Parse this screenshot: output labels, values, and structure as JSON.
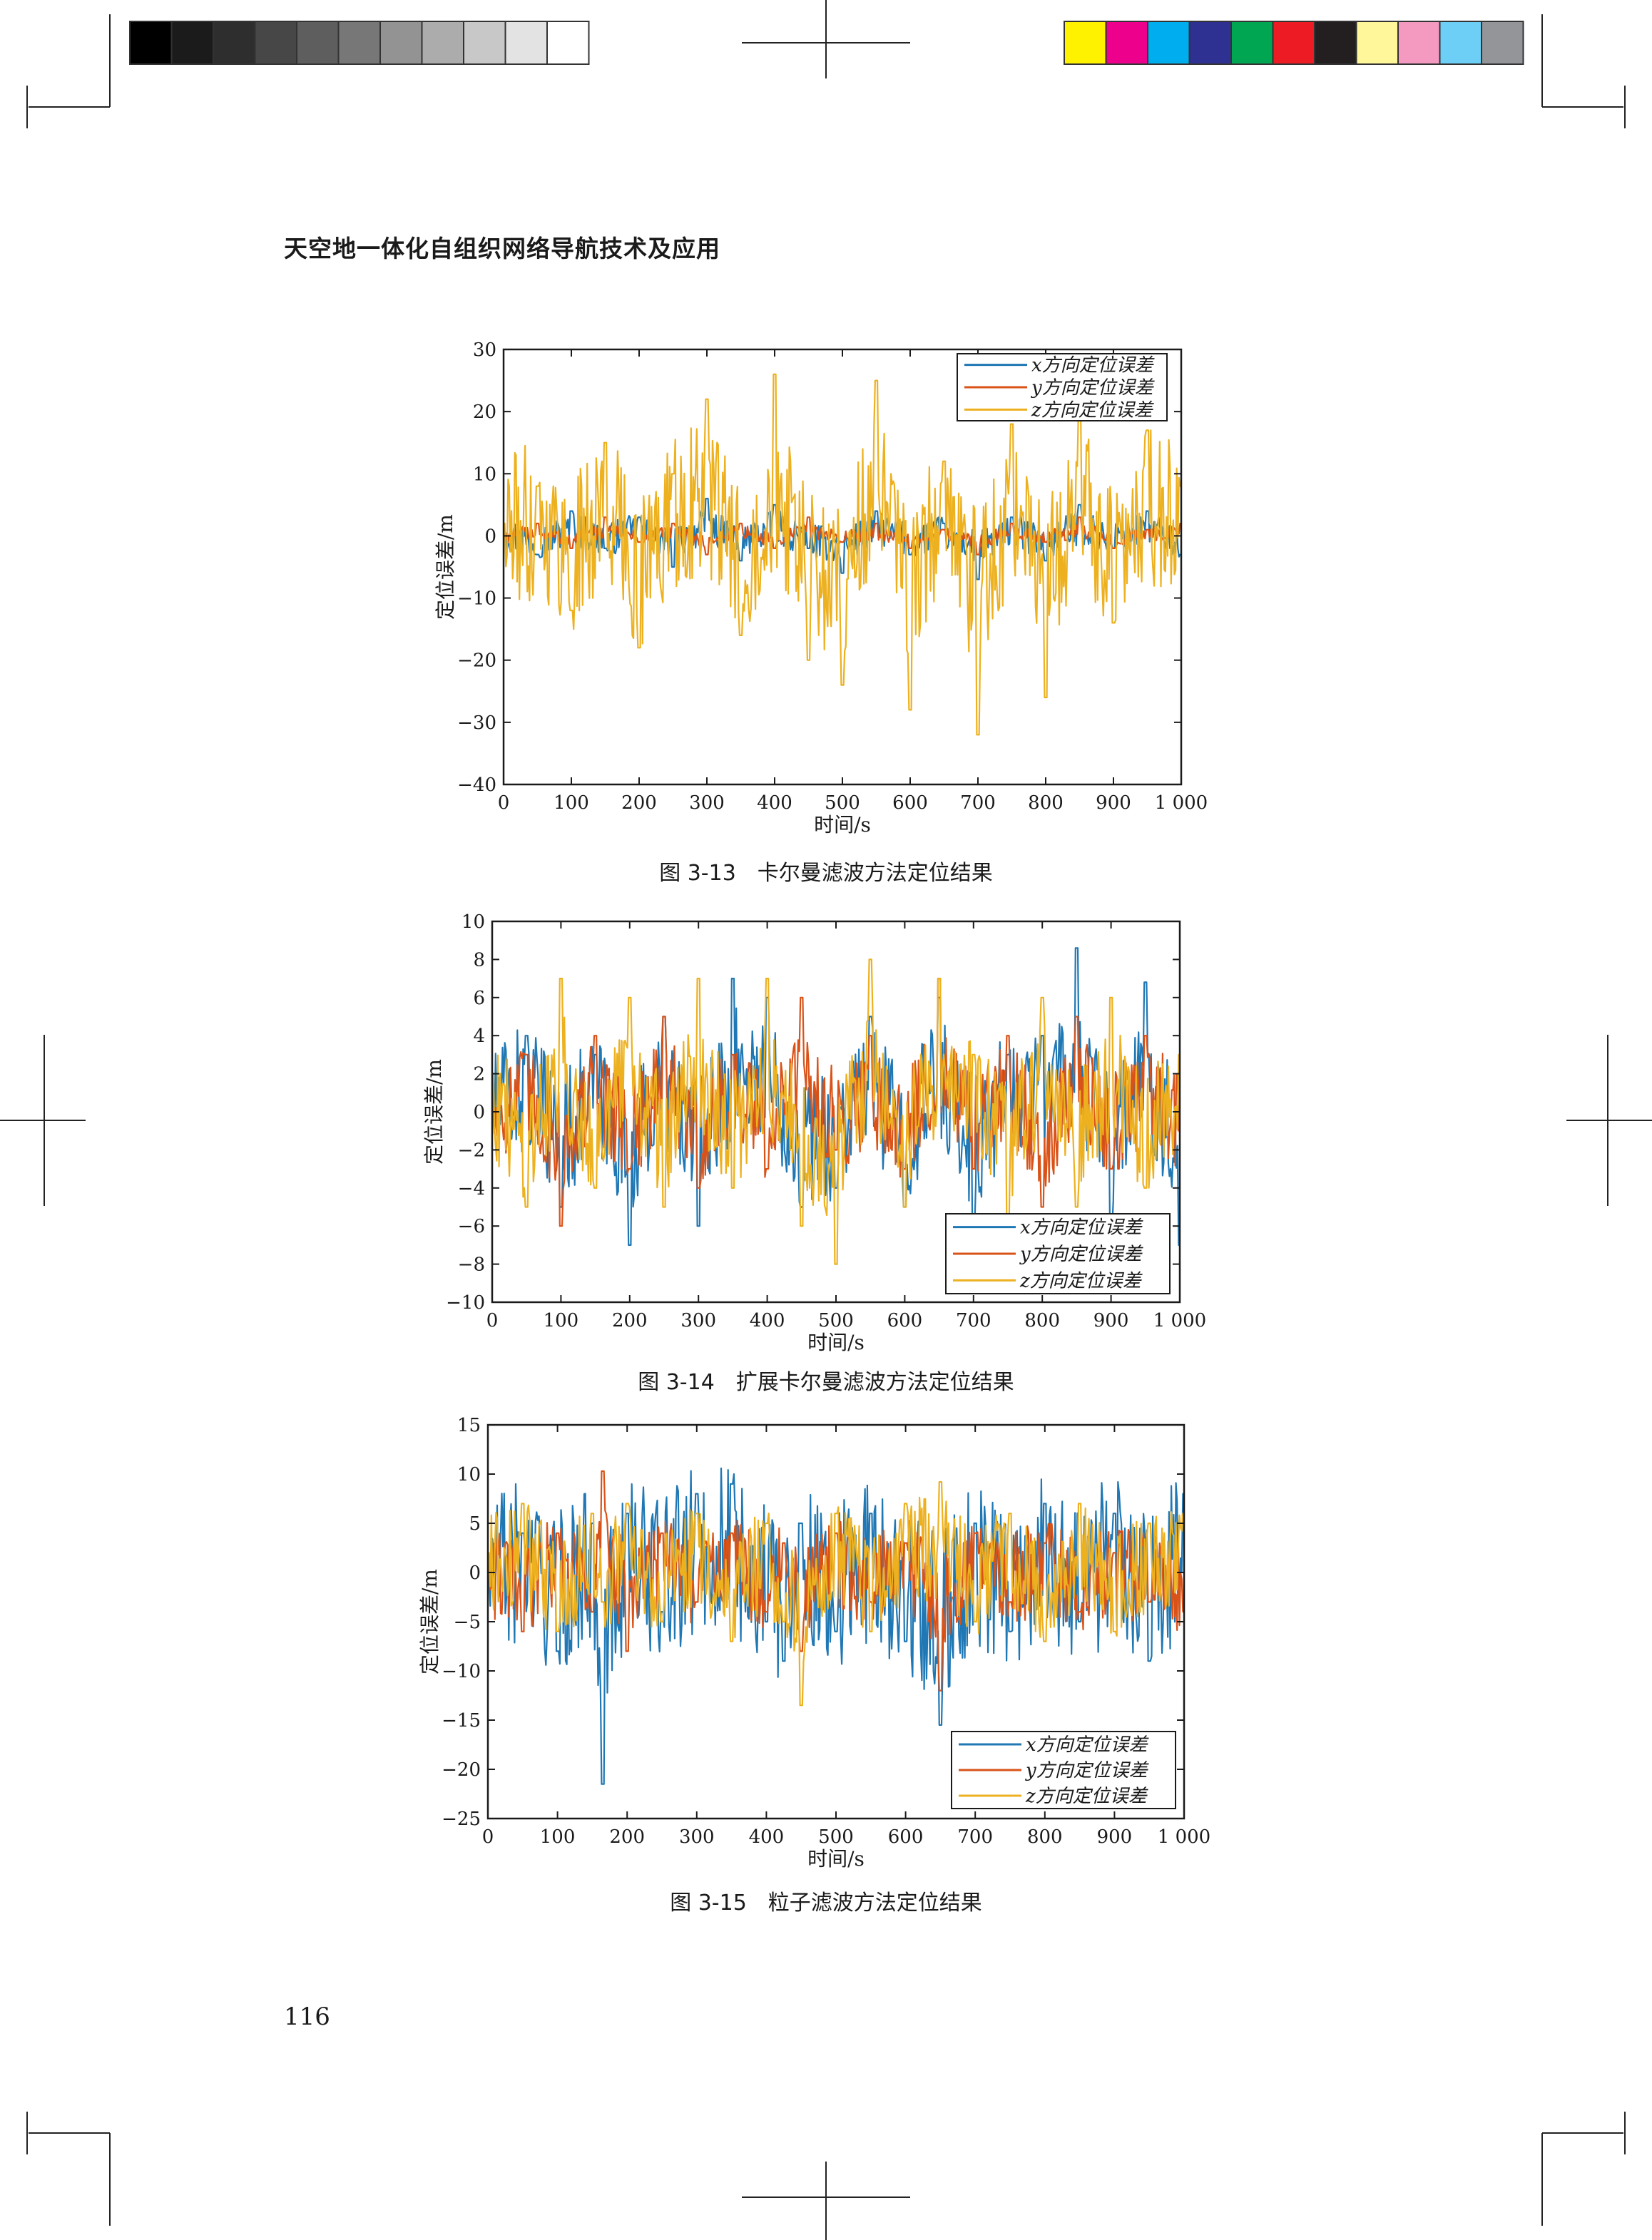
{
  "running_head": "天空地一体化自组织网络导航技术及应用",
  "page_number": "116",
  "print_marks": {
    "grayscale_bar": [
      "#000000",
      "#1b1b1b",
      "#2e2e2e",
      "#474747",
      "#5e5e5e",
      "#777777",
      "#939393",
      "#acacac",
      "#c8c8c8",
      "#e3e3e3",
      "#ffffff"
    ],
    "color_bar": [
      "#fff200",
      "#ec008c",
      "#00aeef",
      "#2e3192",
      "#00a651",
      "#ed1c24",
      "#231f20",
      "#fff799",
      "#f49ac1",
      "#6dcff6",
      "#939598"
    ]
  },
  "series_colors": [
    "#1f77b4",
    "#d95319",
    "#edb120"
  ],
  "chart_data": [
    {
      "type": "line",
      "caption": "图 3-13　卡尔曼滤波方法定位结果",
      "xlabel": "时间/s",
      "ylabel": "定位误差/m",
      "xlim": [
        0,
        1000
      ],
      "ylim": [
        -40,
        30
      ],
      "xticks": [
        0,
        100,
        200,
        300,
        400,
        500,
        600,
        700,
        800,
        900,
        1000
      ],
      "xtick_labels": [
        "0",
        "100",
        "200",
        "300",
        "400",
        "500",
        "600",
        "700",
        "800",
        "900",
        "1 000"
      ],
      "yticks": [
        30,
        20,
        10,
        0,
        -10,
        -20,
        -30,
        -40
      ],
      "ytick_labels": [
        "30",
        "20",
        "10",
        "0",
        "−10",
        "−20",
        "−30",
        "−40"
      ],
      "legend_position": "top-right",
      "grid": false,
      "series": [
        {
          "name": "x方向定位误差",
          "x": [
            0,
            50,
            100,
            150,
            200,
            250,
            300,
            350,
            400,
            450,
            500,
            550,
            600,
            650,
            700,
            750,
            800,
            850,
            900,
            950,
            1000
          ],
          "values": [
            1,
            -3,
            4,
            -2,
            3,
            -5,
            6,
            -4,
            5,
            -2,
            -6,
            4,
            -3,
            2,
            -7,
            3,
            -4,
            5,
            -2,
            4,
            -3
          ]
        },
        {
          "name": "y方向定位误差",
          "x": [
            0,
            50,
            100,
            150,
            200,
            250,
            300,
            350,
            400,
            450,
            500,
            550,
            600,
            650,
            700,
            750,
            800,
            850,
            900,
            950,
            1000
          ],
          "values": [
            0,
            2,
            -2,
            3,
            -1,
            2,
            -3,
            2,
            -2,
            3,
            -1,
            2,
            -2,
            1,
            -3,
            2,
            -1,
            3,
            -2,
            1,
            2
          ]
        },
        {
          "name": "z方向定位误差",
          "x": [
            0,
            50,
            100,
            150,
            200,
            250,
            300,
            350,
            400,
            450,
            500,
            550,
            600,
            650,
            700,
            750,
            800,
            850,
            900,
            950,
            1000
          ],
          "values": [
            2,
            8,
            -12,
            15,
            -18,
            10,
            22,
            -16,
            26,
            -20,
            -24,
            25,
            -28,
            12,
            -32,
            18,
            -26,
            20,
            -14,
            17,
            8
          ]
        }
      ]
    },
    {
      "type": "line",
      "caption": "图 3-14　扩展卡尔曼滤波方法定位结果",
      "xlabel": "时间/s",
      "ylabel": "定位误差/m",
      "xlim": [
        0,
        1000
      ],
      "ylim": [
        -10,
        10
      ],
      "xticks": [
        0,
        100,
        200,
        300,
        400,
        500,
        600,
        700,
        800,
        900,
        1000
      ],
      "xtick_labels": [
        "0",
        "100",
        "200",
        "300",
        "400",
        "500",
        "600",
        "700",
        "800",
        "900",
        "1 000"
      ],
      "yticks": [
        10,
        8,
        6,
        4,
        2,
        0,
        -2,
        -4,
        -6,
        -8,
        -10
      ],
      "ytick_labels": [
        "10",
        "8",
        "6",
        "4",
        "2",
        "0",
        "−2",
        "−4",
        "−6",
        "−8",
        "−10"
      ],
      "legend_position": "bottom-right",
      "grid": false,
      "series": [
        {
          "name": "x方向定位误差",
          "x": [
            0,
            50,
            100,
            150,
            200,
            250,
            300,
            350,
            400,
            450,
            500,
            550,
            600,
            650,
            700,
            750,
            800,
            850,
            900,
            950,
            1000
          ],
          "values": [
            1,
            4,
            -5,
            3,
            -7,
            5,
            -6,
            7,
            6,
            -5,
            -4,
            5,
            -5,
            6,
            -6,
            3,
            4,
            8.6,
            -6,
            6.8,
            -7
          ]
        },
        {
          "name": "y方向定位误差",
          "x": [
            0,
            50,
            100,
            150,
            200,
            250,
            300,
            350,
            400,
            450,
            500,
            550,
            600,
            650,
            700,
            750,
            800,
            850,
            900,
            950,
            1000
          ],
          "values": [
            0,
            3,
            -6,
            4,
            -3,
            5,
            -4,
            3,
            -3,
            6,
            -2,
            4,
            -3,
            7,
            -3,
            4,
            -5,
            5,
            -3,
            4,
            -1
          ]
        },
        {
          "name": "z方向定位误差",
          "x": [
            0,
            50,
            100,
            150,
            200,
            250,
            300,
            350,
            400,
            450,
            500,
            550,
            600,
            650,
            700,
            750,
            800,
            850,
            900,
            950,
            1000
          ],
          "values": [
            2,
            -5,
            7,
            -4,
            6,
            -5,
            7,
            -4,
            7,
            -6,
            -8,
            8,
            -5,
            7,
            3,
            -6,
            6,
            -5,
            6,
            -4,
            3
          ]
        }
      ]
    },
    {
      "type": "line",
      "caption": "图 3-15　粒子滤波方法定位结果",
      "xlabel": "时间/s",
      "ylabel": "定位误差/m",
      "xlim": [
        0,
        1000
      ],
      "ylim": [
        -25,
        15
      ],
      "xticks": [
        0,
        100,
        200,
        300,
        400,
        500,
        600,
        700,
        800,
        900,
        1000
      ],
      "xtick_labels": [
        "0",
        "100",
        "200",
        "300",
        "400",
        "500",
        "600",
        "700",
        "800",
        "900",
        "1 000"
      ],
      "yticks": [
        15,
        10,
        5,
        0,
        -5,
        -10,
        -15,
        -20,
        -25
      ],
      "ytick_labels": [
        "15",
        "10",
        "5",
        "0",
        "−5",
        "−10",
        "−15",
        "−20",
        "−25"
      ],
      "legend_position": "bottom-right",
      "grid": false,
      "series": [
        {
          "name": "x方向定位误差",
          "x": [
            0,
            50,
            100,
            150,
            165,
            200,
            250,
            300,
            350,
            400,
            425,
            450,
            500,
            550,
            600,
            650,
            700,
            750,
            800,
            850,
            900,
            950,
            1000
          ],
          "values": [
            0,
            4,
            -8,
            5,
            -21.5,
            6,
            -4,
            8,
            9,
            -5,
            -9,
            5,
            -6,
            6,
            -7,
            -15.5,
            5,
            -6,
            7,
            -5,
            6,
            -9,
            8
          ]
        },
        {
          "name": "y方向定位误差",
          "x": [
            0,
            50,
            100,
            150,
            165,
            200,
            250,
            300,
            350,
            400,
            425,
            450,
            500,
            550,
            600,
            650,
            700,
            750,
            800,
            850,
            900,
            950,
            1000
          ],
          "values": [
            1,
            -6,
            4,
            -4,
            10.3,
            -8,
            4,
            -3,
            4,
            -4,
            3,
            -8,
            4,
            -3,
            3,
            -12,
            4,
            -3,
            3,
            -4,
            2,
            -3,
            -4
          ]
        },
        {
          "name": "z方向定位误差",
          "x": [
            0,
            50,
            100,
            150,
            165,
            200,
            250,
            300,
            350,
            400,
            425,
            450,
            500,
            550,
            600,
            650,
            700,
            750,
            800,
            850,
            900,
            950,
            1000
          ],
          "values": [
            2,
            7,
            -6,
            6,
            -3,
            7,
            -5,
            6,
            -7,
            5,
            -5,
            -13.5,
            6,
            -6,
            7,
            9.2,
            -5,
            6,
            -7,
            7,
            -6,
            5,
            6
          ]
        }
      ]
    }
  ]
}
